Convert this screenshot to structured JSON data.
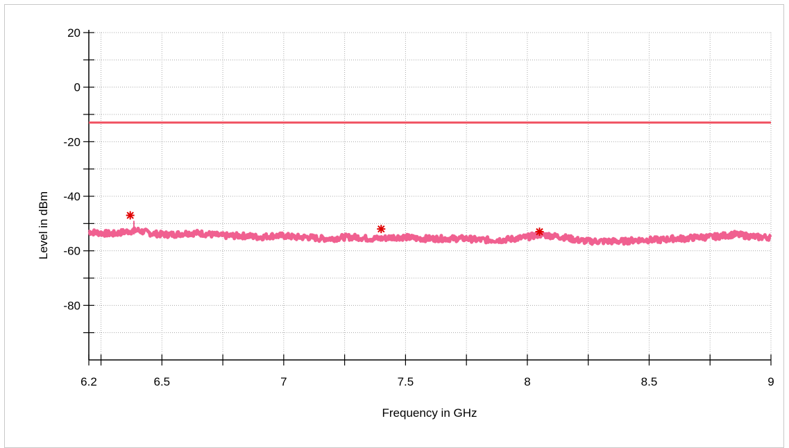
{
  "chart_data": {
    "type": "line",
    "title": "",
    "xlabel": "Frequency in GHz",
    "ylabel": "Level in dBm",
    "xlim": [
      6.2,
      9.0
    ],
    "ylim": [
      -100,
      20
    ],
    "grid": true,
    "x_ticks": [
      6.2,
      6.5,
      7,
      7.5,
      8,
      8.5,
      9
    ],
    "x_tick_labels": [
      "6.2",
      "6.5",
      "7",
      "7.5",
      "8",
      "8.5",
      "9"
    ],
    "x_minor_ticks": [
      6.25,
      6.75,
      7.25,
      7.75,
      8.25,
      8.75
    ],
    "y_ticks": [
      20,
      0,
      -20,
      -40,
      -60,
      -80
    ],
    "y_tick_labels": [
      "20",
      "0",
      "-20",
      "-40",
      "-60",
      "-80"
    ],
    "y_minor_ticks": [
      10,
      -10,
      -30,
      -50,
      -70,
      -90
    ],
    "series": [
      {
        "color": "#f06090",
        "x": [
          6.2,
          6.25,
          6.3,
          6.35,
          6.4,
          6.45,
          6.5,
          6.55,
          6.6,
          6.65,
          6.7,
          6.75,
          6.8,
          6.85,
          6.9,
          6.95,
          7.0,
          7.05,
          7.1,
          7.15,
          7.2,
          7.25,
          7.3,
          7.35,
          7.4,
          7.45,
          7.5,
          7.55,
          7.6,
          7.65,
          7.7,
          7.75,
          7.8,
          7.85,
          7.9,
          7.95,
          8.0,
          8.05,
          8.1,
          8.15,
          8.2,
          8.25,
          8.3,
          8.35,
          8.4,
          8.45,
          8.5,
          8.55,
          8.6,
          8.65,
          8.7,
          8.75,
          8.8,
          8.85,
          8.9,
          8.95,
          9.0
        ],
        "y": [
          -53,
          -53.5,
          -53.8,
          -53,
          -52.5,
          -53.5,
          -54,
          -54,
          -53.5,
          -53.5,
          -54,
          -54.5,
          -54.5,
          -54.5,
          -55,
          -54.5,
          -54.5,
          -55,
          -55,
          -55.5,
          -55.5,
          -55,
          -55,
          -55.5,
          -55.5,
          -55,
          -55,
          -55.5,
          -55.5,
          -55.5,
          -55.5,
          -55.5,
          -56,
          -56,
          -56,
          -55.5,
          -55,
          -54,
          -54.5,
          -55,
          -56,
          -56.5,
          -56.5,
          -56.5,
          -56.5,
          -56,
          -56,
          -56,
          -55.5,
          -55.5,
          -55,
          -55,
          -54.5,
          -54,
          -54.5,
          -55,
          -55
        ]
      },
      {
        "color": "#f05060",
        "x": [
          6.2,
          9.0
        ],
        "y": [
          -13,
          -13
        ]
      }
    ],
    "markers": [
      {
        "x": 6.37,
        "y": -47,
        "color": "#e00000"
      },
      {
        "x": 7.4,
        "y": -52,
        "color": "#e00000"
      },
      {
        "x": 8.05,
        "y": -53,
        "color": "#e00000"
      }
    ]
  }
}
